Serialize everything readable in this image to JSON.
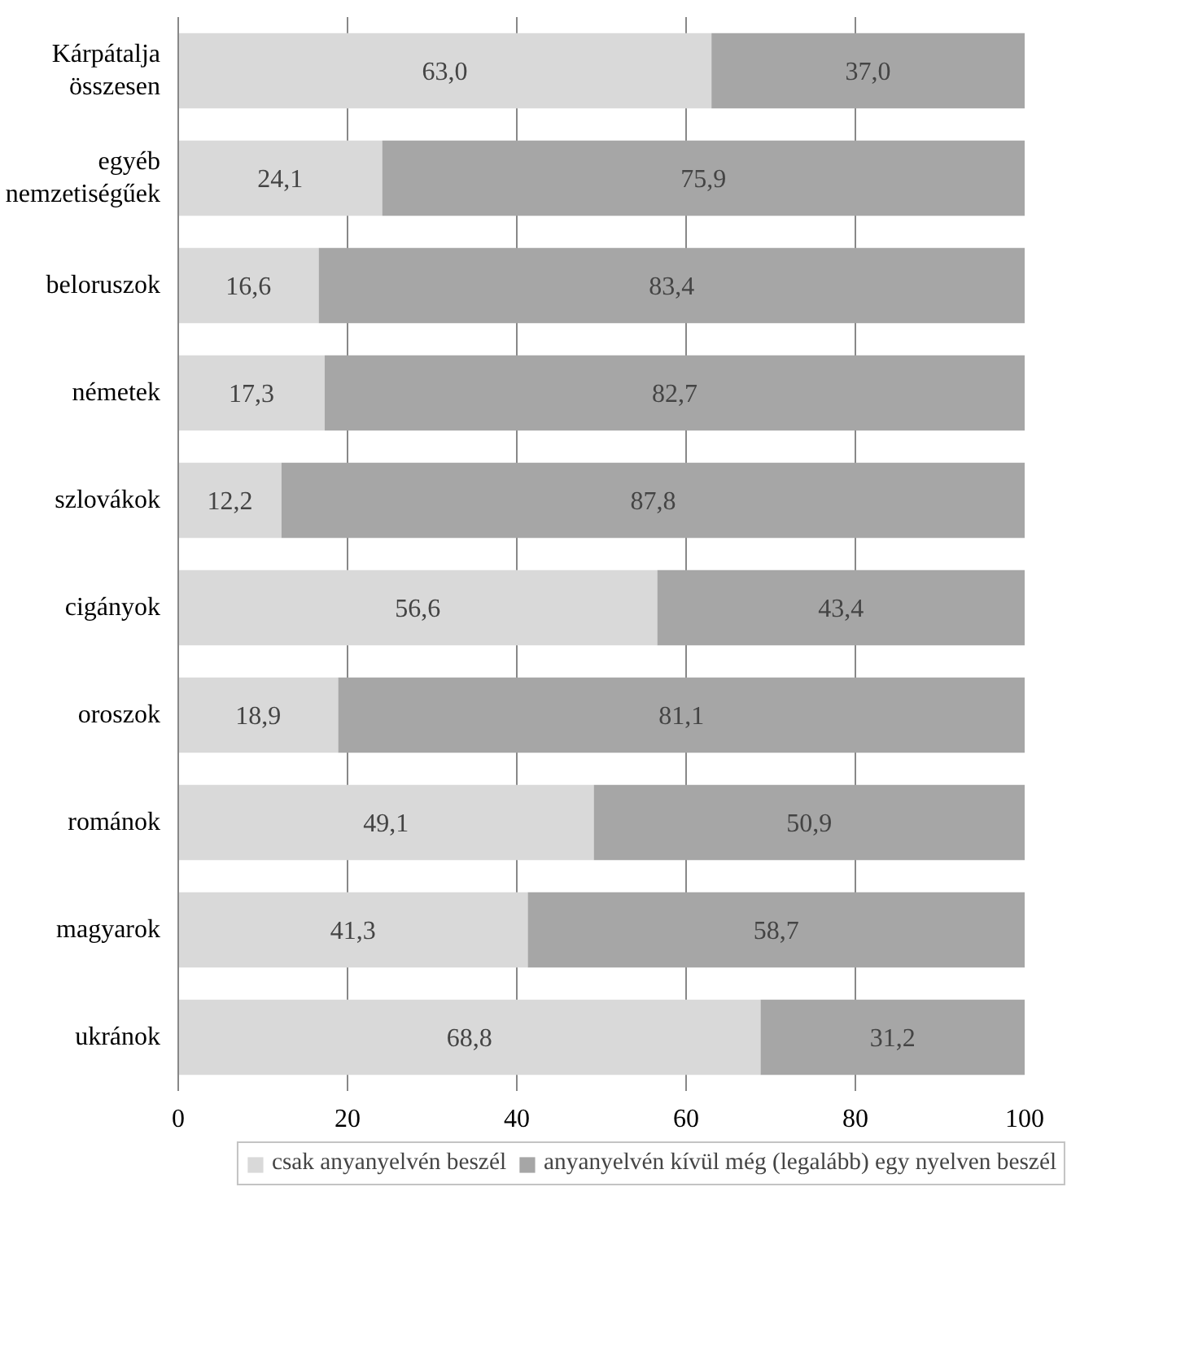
{
  "chart_data": {
    "type": "bar",
    "orientation": "horizontal",
    "stacked": true,
    "categories": [
      "Kárpátalja\nösszesen",
      "egyéb\nnemzetiségűek",
      "beloruszok",
      "németek",
      "szlovákok",
      "cigányok",
      "oroszok",
      "románok",
      "magyarok",
      "ukránok"
    ],
    "series": [
      {
        "name": "csak anyanyelvén beszél",
        "color": "#d9d9d9",
        "values": [
          63.0,
          24.1,
          16.6,
          17.3,
          12.2,
          56.6,
          18.9,
          49.1,
          41.3,
          68.8
        ],
        "value_labels": [
          "63,0",
          "24,1",
          "16,6",
          "17,3",
          "12,2",
          "56,6",
          "18,9",
          "49,1",
          "41,3",
          "68,8"
        ]
      },
      {
        "name": "anyanyelvén kívül még (legalább) egy nyelven beszél",
        "color": "#a6a6a6",
        "values": [
          37.0,
          75.9,
          83.4,
          82.7,
          87.8,
          43.4,
          81.1,
          50.9,
          58.7,
          31.2
        ],
        "value_labels": [
          "37,0",
          "75,9",
          "83,4",
          "82,7",
          "87,8",
          "43,4",
          "81,1",
          "50,9",
          "58,7",
          "31,2"
        ]
      }
    ],
    "xlim": [
      0,
      100
    ],
    "xticks": [
      0,
      20,
      40,
      60,
      80,
      100
    ],
    "grid": "x",
    "legend": "bottom"
  }
}
